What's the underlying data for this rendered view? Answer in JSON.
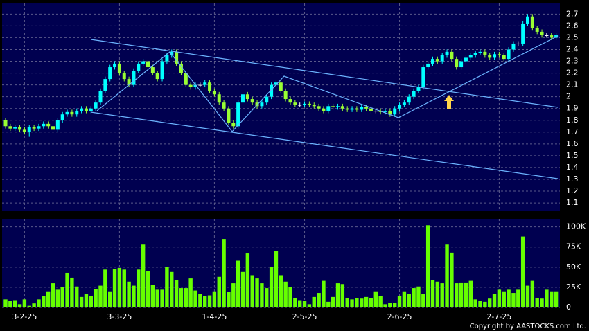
{
  "chart_data": [
    {
      "type": "candlestick",
      "categories": [
        null,
        null,
        null,
        null,
        "3-2-25",
        null,
        null,
        null,
        null,
        null,
        null,
        null,
        null,
        null,
        null,
        null,
        null,
        null,
        null,
        null,
        null,
        null,
        null,
        null,
        "3-3-25",
        null,
        null,
        null,
        null,
        null,
        null,
        null,
        null,
        null,
        null,
        null,
        null,
        null,
        null,
        null,
        null,
        null,
        null,
        null,
        "1-4-25",
        null,
        null,
        null,
        null,
        null,
        null,
        null,
        null,
        null,
        null,
        null,
        null,
        null,
        null,
        null,
        null,
        null,
        null,
        "2-5-25",
        null,
        null,
        null,
        null,
        null,
        null,
        null,
        null,
        null,
        null,
        null,
        null,
        null,
        null,
        null,
        null,
        null,
        null,
        null,
        "2-6-25",
        null,
        null,
        null,
        null,
        null,
        null,
        null,
        null,
        null,
        null,
        null,
        null,
        null,
        null,
        null,
        null,
        null,
        null,
        null,
        null,
        "2-7-25",
        null,
        null,
        null,
        null,
        null,
        null,
        null,
        null,
        null,
        null,
        null,
        null
      ],
      "open": [
        1.8,
        1.75,
        1.73,
        1.74,
        1.72,
        1.7,
        1.74,
        1.73,
        1.75,
        1.77,
        1.75,
        1.72,
        1.8,
        1.85,
        1.87,
        1.85,
        1.88,
        1.9,
        1.88,
        1.9,
        1.95,
        2.05,
        2.15,
        2.25,
        2.28,
        2.2,
        2.15,
        2.1,
        2.22,
        2.28,
        2.3,
        2.25,
        2.2,
        2.15,
        2.3,
        2.35,
        2.38,
        2.28,
        2.2,
        2.1,
        2.08,
        2.1,
        2.1,
        2.12,
        2.05,
        2.02,
        1.95,
        1.9,
        1.78,
        1.75,
        1.95,
        2.02,
        1.98,
        1.95,
        1.92,
        1.95,
        2.0,
        2.1,
        2.12,
        2.05,
        1.98,
        1.95,
        1.93,
        1.93,
        1.94,
        1.93,
        1.92,
        1.9,
        1.88,
        1.92,
        1.91,
        1.92,
        1.9,
        1.89,
        1.9,
        1.89,
        1.91,
        1.9,
        1.88,
        1.88,
        1.87,
        1.88,
        1.85,
        1.9,
        1.93,
        1.95,
        2.0,
        2.05,
        2.08,
        2.25,
        2.28,
        2.32,
        2.3,
        2.35,
        2.38,
        2.32,
        2.25,
        2.3,
        2.33,
        2.35,
        2.37,
        2.38,
        2.35,
        2.33,
        2.36,
        2.35,
        2.32,
        2.4,
        2.45,
        2.45,
        2.62,
        2.68,
        2.58,
        2.55,
        2.52,
        2.52,
        2.5
      ],
      "high": [
        1.82,
        1.77,
        1.76,
        1.76,
        1.74,
        1.76,
        1.76,
        1.77,
        1.79,
        1.79,
        1.77,
        1.82,
        1.87,
        1.89,
        1.89,
        1.9,
        1.92,
        1.92,
        1.92,
        1.97,
        2.07,
        2.17,
        2.27,
        2.3,
        2.3,
        2.22,
        2.17,
        2.24,
        2.3,
        2.32,
        2.32,
        2.27,
        2.22,
        2.32,
        2.37,
        2.4,
        2.4,
        2.3,
        2.22,
        2.12,
        2.12,
        2.12,
        2.14,
        2.14,
        2.07,
        2.04,
        1.97,
        1.92,
        1.8,
        1.97,
        2.04,
        2.04,
        2.0,
        1.97,
        1.97,
        2.02,
        2.12,
        2.14,
        2.14,
        2.07,
        2.0,
        1.97,
        1.95,
        1.96,
        1.96,
        1.95,
        1.94,
        1.92,
        1.94,
        1.94,
        1.94,
        1.94,
        1.92,
        1.92,
        1.92,
        1.93,
        1.93,
        1.92,
        1.9,
        1.9,
        1.9,
        1.9,
        1.92,
        1.95,
        1.97,
        2.02,
        2.07,
        2.1,
        2.27,
        2.3,
        2.34,
        2.34,
        2.37,
        2.4,
        2.4,
        2.34,
        2.32,
        2.35,
        2.37,
        2.39,
        2.4,
        2.4,
        2.37,
        2.38,
        2.38,
        2.37,
        2.42,
        2.47,
        2.47,
        2.64,
        2.7,
        2.7,
        2.6,
        2.57,
        2.54,
        2.54,
        2.54
      ],
      "low": [
        1.73,
        1.71,
        1.71,
        1.7,
        1.68,
        1.66,
        1.71,
        1.71,
        1.73,
        1.73,
        1.7,
        1.7,
        1.78,
        1.83,
        1.83,
        1.83,
        1.86,
        1.86,
        1.86,
        1.88,
        1.93,
        2.03,
        2.13,
        2.23,
        2.18,
        2.13,
        2.08,
        2.08,
        2.2,
        2.26,
        2.23,
        2.18,
        2.13,
        2.13,
        2.28,
        2.33,
        2.26,
        2.18,
        2.08,
        2.06,
        2.06,
        2.08,
        2.08,
        2.03,
        2.0,
        1.93,
        1.88,
        1.76,
        1.73,
        1.73,
        1.93,
        1.96,
        1.93,
        1.9,
        1.9,
        1.93,
        1.98,
        2.08,
        2.03,
        1.96,
        1.93,
        1.91,
        1.91,
        1.91,
        1.91,
        1.9,
        1.88,
        1.86,
        1.86,
        1.89,
        1.89,
        1.88,
        1.87,
        1.87,
        1.87,
        1.87,
        1.88,
        1.86,
        1.86,
        1.85,
        1.85,
        1.83,
        1.83,
        1.88,
        1.91,
        1.93,
        1.98,
        2.03,
        2.06,
        2.23,
        2.26,
        2.28,
        2.28,
        2.33,
        2.3,
        2.23,
        2.23,
        2.28,
        2.31,
        2.33,
        2.35,
        2.33,
        2.31,
        2.31,
        2.33,
        2.3,
        2.3,
        2.38,
        2.43,
        2.43,
        2.6,
        2.56,
        2.53,
        2.5,
        2.5,
        2.48,
        2.48
      ],
      "close": [
        1.75,
        1.73,
        1.74,
        1.72,
        1.7,
        1.74,
        1.73,
        1.75,
        1.77,
        1.75,
        1.72,
        1.8,
        1.85,
        1.87,
        1.85,
        1.88,
        1.9,
        1.88,
        1.9,
        1.95,
        2.05,
        2.15,
        2.25,
        2.28,
        2.2,
        2.15,
        2.1,
        2.22,
        2.28,
        2.3,
        2.25,
        2.2,
        2.15,
        2.3,
        2.35,
        2.38,
        2.28,
        2.2,
        2.1,
        2.08,
        2.1,
        2.1,
        2.12,
        2.05,
        2.02,
        1.95,
        1.9,
        1.78,
        1.75,
        1.95,
        2.02,
        1.98,
        1.95,
        1.92,
        1.95,
        2.0,
        2.1,
        2.12,
        2.05,
        1.98,
        1.95,
        1.93,
        1.93,
        1.94,
        1.93,
        1.92,
        1.9,
        1.88,
        1.92,
        1.91,
        1.92,
        1.9,
        1.89,
        1.9,
        1.89,
        1.91,
        1.9,
        1.88,
        1.88,
        1.87,
        1.88,
        1.85,
        1.9,
        1.93,
        1.95,
        2.0,
        2.05,
        2.08,
        2.25,
        2.28,
        2.32,
        2.3,
        2.35,
        2.38,
        2.32,
        2.25,
        2.3,
        2.33,
        2.35,
        2.37,
        2.38,
        2.35,
        2.33,
        2.36,
        2.35,
        2.32,
        2.4,
        2.45,
        2.45,
        2.62,
        2.68,
        2.58,
        2.55,
        2.52,
        2.52,
        2.5,
        2.52
      ],
      "up_color": "#00ffff",
      "down_color": "#99ff33",
      "flat_color": "#ffffff",
      "ylim": [
        1.03,
        2.79
      ],
      "yticks": [
        1.1,
        1.2,
        1.3,
        1.4,
        1.5,
        1.6,
        1.7,
        1.8,
        1.9,
        2,
        2.1,
        2.2,
        2.3,
        2.4,
        2.5,
        2.6,
        2.7
      ],
      "grid": true
    },
    {
      "type": "bar",
      "values": [
        10000,
        8000,
        9000,
        4000,
        10000,
        2000,
        5000,
        10000,
        14000,
        20000,
        30000,
        22000,
        25000,
        43000,
        37000,
        26000,
        13000,
        17000,
        14000,
        23000,
        27000,
        47000,
        20000,
        48000,
        49000,
        47000,
        32000,
        27000,
        47000,
        78000,
        45000,
        28000,
        22000,
        22000,
        50000,
        44000,
        34000,
        24000,
        24000,
        36000,
        21000,
        17000,
        14000,
        15000,
        20000,
        38000,
        85000,
        19000,
        30000,
        58000,
        44000,
        67000,
        40000,
        36000,
        30000,
        24000,
        50000,
        70000,
        40000,
        32000,
        25000,
        12000,
        9000,
        8000,
        4000,
        13000,
        18000,
        33000,
        7000,
        13000,
        30000,
        29000,
        12000,
        10000,
        12000,
        11000,
        13000,
        12000,
        20000,
        14000,
        4000,
        6000,
        6000,
        14000,
        20000,
        17000,
        24000,
        26000,
        17000,
        102000,
        34000,
        32000,
        30000,
        78000,
        68000,
        30000,
        31000,
        31000,
        33000,
        10000,
        8000,
        7000,
        11000,
        17000,
        22000,
        20000,
        22000,
        18000,
        22000,
        88000,
        27000,
        33000,
        12000,
        11000,
        22000,
        20000,
        20000
      ],
      "color": "#66ff00",
      "ylim": [
        0,
        110000
      ],
      "yticks": [
        0,
        {
          "value": 25000,
          "label": "25K"
        },
        {
          "value": 50000,
          "label": "50K"
        },
        {
          "value": 75000,
          "label": "75K"
        },
        {
          "value": 100000,
          "label": "100K"
        }
      ],
      "grid": true
    }
  ],
  "copyright": "Copyright by AASTOCKS.com Ltd."
}
